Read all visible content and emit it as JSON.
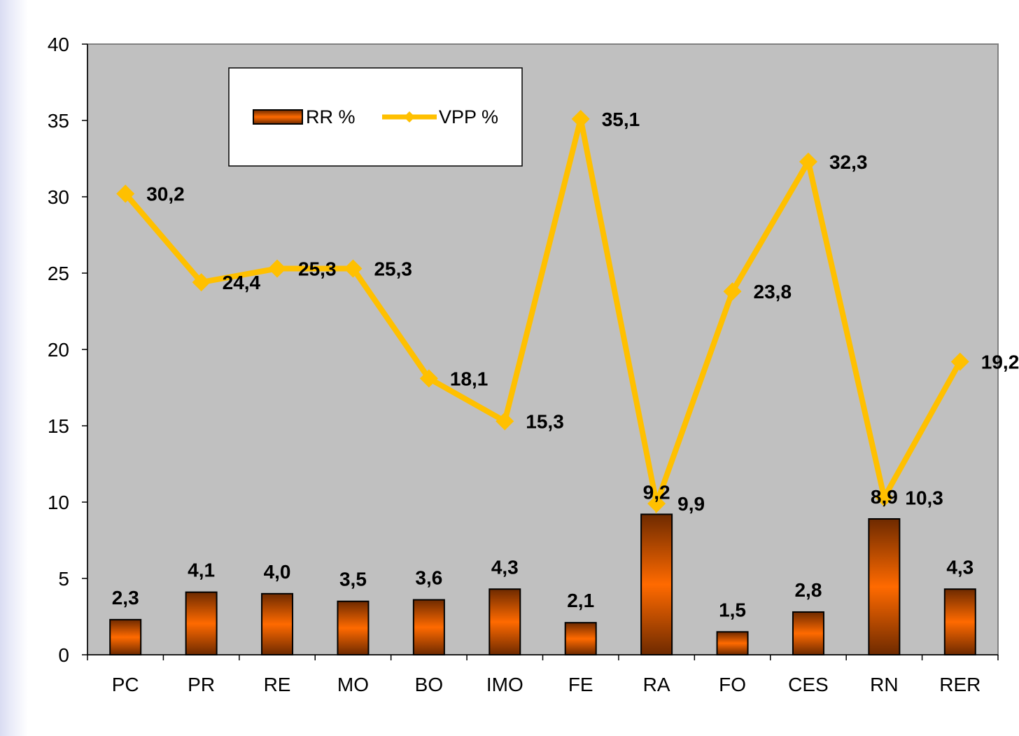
{
  "chart_data": {
    "type": "bar",
    "categories": [
      "PC",
      "PR",
      "RE",
      "MO",
      "BO",
      "IMO",
      "FE",
      "RA",
      "FO",
      "CES",
      "RN",
      "RER"
    ],
    "series": [
      {
        "name": "RR %",
        "type": "bar",
        "values": [
          2.3,
          4.1,
          4.0,
          3.5,
          3.6,
          4.3,
          2.1,
          9.2,
          1.5,
          2.8,
          8.9,
          4.3
        ],
        "labels": [
          "2,3",
          "4,1",
          "4,0",
          "3,5",
          "3,6",
          "4,3",
          "2,1",
          "9,2",
          "1,5",
          "2,8",
          "8,9",
          "4,3"
        ]
      },
      {
        "name": "VPP %",
        "type": "line",
        "values": [
          30.2,
          24.4,
          25.3,
          25.3,
          18.1,
          15.3,
          35.1,
          9.9,
          23.8,
          32.3,
          10.3,
          19.2
        ],
        "labels": [
          "30,2",
          "24,4",
          "25,3",
          "25,3",
          "18,1",
          "15,3",
          "35,1",
          "9,9",
          "23,8",
          "32,3",
          "10,3",
          "19,2"
        ]
      }
    ],
    "y_ticks": [
      "0",
      "5",
      "10",
      "15",
      "20",
      "25",
      "30",
      "35",
      "40"
    ],
    "ylim": [
      0,
      40
    ],
    "grid": false,
    "legend_position": "top-left",
    "colors": {
      "plot_background": "#c0c0c0",
      "bar_dark": "#6e2a00",
      "bar_light": "#ff6a00",
      "line": "#ffc000"
    }
  }
}
